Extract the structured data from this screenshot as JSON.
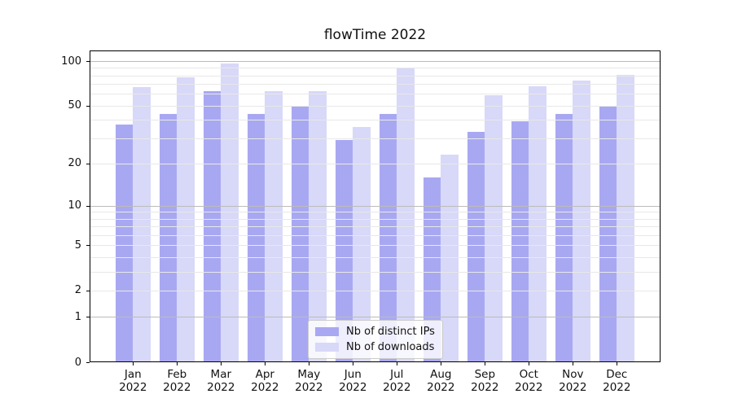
{
  "chart_data": {
    "type": "bar",
    "title": "flowTime 2022",
    "yscale": "log1p",
    "categories": [
      "Jan 2022",
      "Feb 2022",
      "Mar 2022",
      "Apr 2022",
      "May 2022",
      "Jun 2022",
      "Jul 2022",
      "Aug 2022",
      "Sep 2022",
      "Oct 2022",
      "Nov 2022",
      "Dec 2022"
    ],
    "series": [
      {
        "name": "Nb of distinct IPs",
        "color": "#a8a8f2",
        "values": [
          37,
          44,
          63,
          44,
          50,
          29,
          44,
          16,
          33,
          39,
          44,
          50
        ]
      },
      {
        "name": "Nb of downloads",
        "color": "#d8d8f8",
        "values": [
          67,
          78,
          96,
          63,
          63,
          36,
          90,
          23,
          59,
          68,
          74,
          81
        ]
      }
    ],
    "yticks": [
      100,
      50,
      20,
      10,
      5,
      2,
      1,
      0
    ],
    "ylim": [
      0,
      119
    ],
    "xlabel": "",
    "ylabel": "",
    "grid": "horizontal",
    "grid_major_values": [
      1,
      10,
      100
    ],
    "grid_minor_values": [
      2,
      3,
      4,
      5,
      6,
      7,
      8,
      9,
      20,
      30,
      40,
      50,
      60,
      70,
      80,
      90
    ],
    "legend_position": "lower center"
  },
  "colors": {
    "background": "#ffffff",
    "bar_distinct_ips": "#a8a8f2",
    "bar_downloads": "#d8d8f8",
    "grid_major": "#bbbbbb",
    "grid_minor": "#e8e8e8",
    "spine": "#000000",
    "text": "#111111",
    "legend_border": "#cccccc"
  }
}
